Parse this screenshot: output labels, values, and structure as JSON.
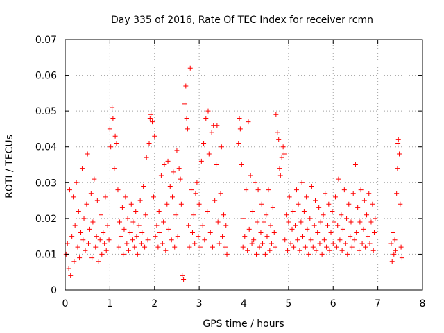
{
  "chart_data": {
    "type": "scatter",
    "title": "Day 335 of 2016, Rate Of TEC Index for receiver rcmn",
    "xlabel": "GPS time / hours",
    "ylabel": "ROTI / TECUs",
    "xlim": [
      0,
      8
    ],
    "ylim": [
      0,
      0.07
    ],
    "x_ticks": [
      "0",
      "1",
      "2",
      "3",
      "4",
      "5",
      "6",
      "7",
      "8"
    ],
    "y_ticks": [
      "0",
      "0.01",
      "0.02",
      "0.03",
      "0.04",
      "0.05",
      "0.06",
      "0.07"
    ],
    "grid": true,
    "marker": "+",
    "marker_color": "#ff0000",
    "series": [
      {
        "name": "ROTI",
        "points": [
          [
            0.02,
            0.01
          ],
          [
            0.05,
            0.013
          ],
          [
            0.08,
            0.006
          ],
          [
            0.1,
            0.028
          ],
          [
            0.12,
            0.004
          ],
          [
            0.15,
            0.015
          ],
          [
            0.18,
            0.026
          ],
          [
            0.2,
            0.008
          ],
          [
            0.22,
            0.018
          ],
          [
            0.25,
            0.03
          ],
          [
            0.28,
            0.012
          ],
          [
            0.3,
            0.022
          ],
          [
            0.32,
            0.009
          ],
          [
            0.35,
            0.016
          ],
          [
            0.38,
            0.034
          ],
          [
            0.4,
            0.014
          ],
          [
            0.42,
            0.02
          ],
          [
            0.45,
            0.011
          ],
          [
            0.48,
            0.024
          ],
          [
            0.5,
            0.038
          ],
          [
            0.52,
            0.013
          ],
          [
            0.55,
            0.017
          ],
          [
            0.58,
            0.027
          ],
          [
            0.6,
            0.009
          ],
          [
            0.62,
            0.019
          ],
          [
            0.65,
            0.031
          ],
          [
            0.68,
            0.012
          ],
          [
            0.7,
            0.015
          ],
          [
            0.72,
            0.025
          ],
          [
            0.75,
            0.008
          ],
          [
            0.78,
            0.014
          ],
          [
            0.8,
            0.021
          ],
          [
            0.82,
            0.01
          ],
          [
            0.85,
            0.016
          ],
          [
            0.88,
            0.013
          ],
          [
            0.9,
            0.026
          ],
          [
            0.92,
            0.011
          ],
          [
            0.95,
            0.018
          ],
          [
            0.98,
            0.014
          ],
          [
            1.0,
            0.045
          ],
          [
            1.02,
            0.04
          ],
          [
            1.05,
            0.051
          ],
          [
            1.07,
            0.048
          ],
          [
            1.1,
            0.034
          ],
          [
            1.12,
            0.043
          ],
          [
            1.15,
            0.041
          ],
          [
            1.18,
            0.028
          ],
          [
            1.2,
            0.012
          ],
          [
            1.22,
            0.019
          ],
          [
            1.25,
            0.015
          ],
          [
            1.28,
            0.023
          ],
          [
            1.3,
            0.01
          ],
          [
            1.32,
            0.017
          ],
          [
            1.35,
            0.026
          ],
          [
            1.38,
            0.013
          ],
          [
            1.4,
            0.02
          ],
          [
            1.42,
            0.011
          ],
          [
            1.45,
            0.016
          ],
          [
            1.48,
            0.024
          ],
          [
            1.5,
            0.014
          ],
          [
            1.52,
            0.019
          ],
          [
            1.55,
            0.012
          ],
          [
            1.58,
            0.022
          ],
          [
            1.6,
            0.015
          ],
          [
            1.62,
            0.01
          ],
          [
            1.65,
            0.018
          ],
          [
            1.68,
            0.025
          ],
          [
            1.7,
            0.013
          ],
          [
            1.72,
            0.016
          ],
          [
            1.75,
            0.029
          ],
          [
            1.78,
            0.012
          ],
          [
            1.8,
            0.021
          ],
          [
            1.82,
            0.037
          ],
          [
            1.85,
            0.014
          ],
          [
            1.88,
            0.041
          ],
          [
            1.9,
            0.048
          ],
          [
            1.92,
            0.049
          ],
          [
            1.95,
            0.047
          ],
          [
            1.98,
            0.026
          ],
          [
            2.0,
            0.043
          ],
          [
            2.02,
            0.015
          ],
          [
            2.05,
            0.018
          ],
          [
            2.08,
            0.012
          ],
          [
            2.1,
            0.022
          ],
          [
            2.12,
            0.016
          ],
          [
            2.15,
            0.032
          ],
          [
            2.18,
            0.013
          ],
          [
            2.2,
            0.019
          ],
          [
            2.22,
            0.035
          ],
          [
            2.25,
            0.011
          ],
          [
            2.28,
            0.024
          ],
          [
            2.3,
            0.036
          ],
          [
            2.32,
            0.017
          ],
          [
            2.35,
            0.029
          ],
          [
            2.38,
            0.014
          ],
          [
            2.4,
            0.026
          ],
          [
            2.42,
            0.033
          ],
          [
            2.45,
            0.012
          ],
          [
            2.48,
            0.021
          ],
          [
            2.5,
            0.039
          ],
          [
            2.52,
            0.015
          ],
          [
            2.55,
            0.034
          ],
          [
            2.58,
            0.031
          ],
          [
            2.6,
            0.024
          ],
          [
            2.62,
            0.004
          ],
          [
            2.65,
            0.003
          ],
          [
            2.68,
            0.052
          ],
          [
            2.7,
            0.057
          ],
          [
            2.72,
            0.048
          ],
          [
            2.74,
            0.045
          ],
          [
            2.76,
            0.018
          ],
          [
            2.78,
            0.012
          ],
          [
            2.8,
            0.062
          ],
          [
            2.82,
            0.028
          ],
          [
            2.85,
            0.016
          ],
          [
            2.88,
            0.021
          ],
          [
            2.9,
            0.013
          ],
          [
            2.92,
            0.027
          ],
          [
            2.95,
            0.03
          ],
          [
            2.98,
            0.015
          ],
          [
            3.0,
            0.024
          ],
          [
            3.02,
            0.012
          ],
          [
            3.05,
            0.036
          ],
          [
            3.08,
            0.018
          ],
          [
            3.1,
            0.041
          ],
          [
            3.12,
            0.014
          ],
          [
            3.15,
            0.048
          ],
          [
            3.18,
            0.022
          ],
          [
            3.2,
            0.05
          ],
          [
            3.22,
            0.038
          ],
          [
            3.25,
            0.016
          ],
          [
            3.28,
            0.044
          ],
          [
            3.3,
            0.012
          ],
          [
            3.32,
            0.046
          ],
          [
            3.35,
            0.025
          ],
          [
            3.38,
            0.035
          ],
          [
            3.4,
            0.046
          ],
          [
            3.42,
            0.019
          ],
          [
            3.45,
            0.013
          ],
          [
            3.48,
            0.027
          ],
          [
            3.5,
            0.04
          ],
          [
            3.52,
            0.015
          ],
          [
            3.55,
            0.021
          ],
          [
            3.58,
            0.012
          ],
          [
            3.6,
            0.018
          ],
          [
            3.62,
            0.01
          ],
          [
            3.88,
            0.041
          ],
          [
            3.9,
            0.048
          ],
          [
            3.92,
            0.045
          ],
          [
            3.95,
            0.035
          ],
          [
            3.98,
            0.012
          ],
          [
            4.0,
            0.02
          ],
          [
            4.02,
            0.015
          ],
          [
            4.05,
            0.028
          ],
          [
            4.08,
            0.011
          ],
          [
            4.1,
            0.047
          ],
          [
            4.12,
            0.017
          ],
          [
            4.15,
            0.032
          ],
          [
            4.18,
            0.013
          ],
          [
            4.2,
            0.022
          ],
          [
            4.22,
            0.014
          ],
          [
            4.25,
            0.03
          ],
          [
            4.28,
            0.01
          ],
          [
            4.3,
            0.019
          ],
          [
            4.32,
            0.028
          ],
          [
            4.35,
            0.012
          ],
          [
            4.38,
            0.016
          ],
          [
            4.4,
            0.024
          ],
          [
            4.42,
            0.013
          ],
          [
            4.45,
            0.019
          ],
          [
            4.48,
            0.01
          ],
          [
            4.5,
            0.021
          ],
          [
            4.52,
            0.015
          ],
          [
            4.55,
            0.028
          ],
          [
            4.58,
            0.011
          ],
          [
            4.6,
            0.018
          ],
          [
            4.62,
            0.013
          ],
          [
            4.65,
            0.023
          ],
          [
            4.68,
            0.016
          ],
          [
            4.7,
            0.012
          ],
          [
            4.72,
            0.049
          ],
          [
            4.75,
            0.044
          ],
          [
            4.78,
            0.042
          ],
          [
            4.8,
            0.034
          ],
          [
            4.82,
            0.032
          ],
          [
            4.85,
            0.037
          ],
          [
            4.88,
            0.04
          ],
          [
            4.9,
            0.038
          ],
          [
            4.92,
            0.014
          ],
          [
            4.95,
            0.021
          ],
          [
            4.98,
            0.011
          ],
          [
            5.0,
            0.019
          ],
          [
            5.02,
            0.026
          ],
          [
            5.05,
            0.013
          ],
          [
            5.08,
            0.017
          ],
          [
            5.1,
            0.022
          ],
          [
            5.12,
            0.012
          ],
          [
            5.15,
            0.018
          ],
          [
            5.18,
            0.028
          ],
          [
            5.2,
            0.014
          ],
          [
            5.22,
            0.024
          ],
          [
            5.25,
            0.011
          ],
          [
            5.28,
            0.019
          ],
          [
            5.3,
            0.03
          ],
          [
            5.32,
            0.015
          ],
          [
            5.35,
            0.022
          ],
          [
            5.38,
            0.012
          ],
          [
            5.4,
            0.026
          ],
          [
            5.42,
            0.017
          ],
          [
            5.45,
            0.01
          ],
          [
            5.48,
            0.02
          ],
          [
            5.5,
            0.014
          ],
          [
            5.52,
            0.029
          ],
          [
            5.55,
            0.012
          ],
          [
            5.58,
            0.018
          ],
          [
            5.6,
            0.025
          ],
          [
            5.62,
            0.011
          ],
          [
            5.65,
            0.016
          ],
          [
            5.68,
            0.023
          ],
          [
            5.7,
            0.013
          ],
          [
            5.72,
            0.019
          ],
          [
            5.75,
            0.01
          ],
          [
            5.78,
            0.021
          ],
          [
            5.8,
            0.014
          ],
          [
            5.82,
            0.027
          ],
          [
            5.85,
            0.012
          ],
          [
            5.88,
            0.018
          ],
          [
            5.9,
            0.024
          ],
          [
            5.92,
            0.011
          ],
          [
            5.95,
            0.016
          ],
          [
            5.98,
            0.022
          ],
          [
            6.0,
            0.013
          ],
          [
            6.02,
            0.019
          ],
          [
            6.05,
            0.026
          ],
          [
            6.08,
            0.012
          ],
          [
            6.1,
            0.018
          ],
          [
            6.12,
            0.031
          ],
          [
            6.15,
            0.014
          ],
          [
            6.18,
            0.021
          ],
          [
            6.2,
            0.011
          ],
          [
            6.22,
            0.017
          ],
          [
            6.25,
            0.028
          ],
          [
            6.28,
            0.013
          ],
          [
            6.3,
            0.02
          ],
          [
            6.32,
            0.01
          ],
          [
            6.35,
            0.024
          ],
          [
            6.38,
            0.015
          ],
          [
            6.4,
            0.019
          ],
          [
            6.42,
            0.012
          ],
          [
            6.45,
            0.027
          ],
          [
            6.48,
            0.014
          ],
          [
            6.5,
            0.035
          ],
          [
            6.52,
            0.016
          ],
          [
            6.55,
            0.023
          ],
          [
            6.58,
            0.011
          ],
          [
            6.6,
            0.019
          ],
          [
            6.62,
            0.028
          ],
          [
            6.65,
            0.013
          ],
          [
            6.68,
            0.017
          ],
          [
            6.7,
            0.025
          ],
          [
            6.72,
            0.012
          ],
          [
            6.75,
            0.021
          ],
          [
            6.78,
            0.015
          ],
          [
            6.8,
            0.027
          ],
          [
            6.82,
            0.013
          ],
          [
            6.85,
            0.019
          ],
          [
            6.88,
            0.024
          ],
          [
            6.9,
            0.011
          ],
          [
            6.92,
            0.016
          ],
          [
            6.94,
            0.02
          ],
          [
            7.3,
            0.013
          ],
          [
            7.32,
            0.008
          ],
          [
            7.34,
            0.016
          ],
          [
            7.36,
            0.01
          ],
          [
            7.38,
            0.014
          ],
          [
            7.4,
            0.011
          ],
          [
            7.42,
            0.027
          ],
          [
            7.44,
            0.034
          ],
          [
            7.45,
            0.041
          ],
          [
            7.46,
            0.042
          ],
          [
            7.48,
            0.038
          ],
          [
            7.5,
            0.024
          ],
          [
            7.52,
            0.012
          ],
          [
            7.54,
            0.009
          ]
        ]
      }
    ]
  }
}
